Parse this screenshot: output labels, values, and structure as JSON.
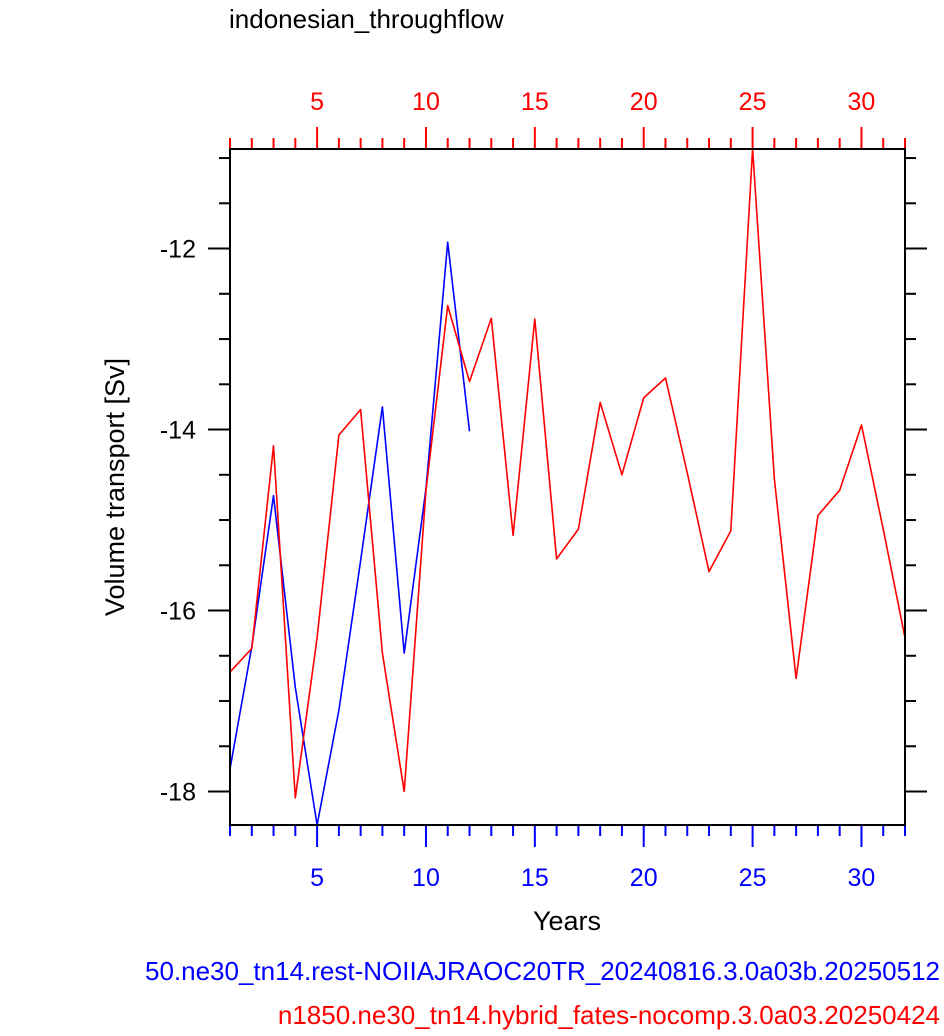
{
  "chart_data": {
    "type": "line",
    "title": "indonesian_throughflow",
    "xlabel": "Years",
    "ylabel": "Volume transport [Sv]",
    "x_range": [
      1,
      32
    ],
    "y_range": [
      -18.37,
      -10.9
    ],
    "x_ticks_major": [
      5,
      10,
      15,
      20,
      25,
      30
    ],
    "y_ticks_major": [
      -12,
      -14,
      -16,
      -18
    ],
    "grid": false,
    "series": [
      {
        "name": "50.ne30_tn14.rest-NOIIAJRAOC20TR_20240816.3.0a03b.20250512",
        "color": "#0000ff",
        "axis": "bottom",
        "x": [
          1,
          2,
          3,
          4,
          5,
          6,
          7,
          8,
          9,
          10,
          11,
          12
        ],
        "y": [
          -17.75,
          -16.4,
          -14.73,
          -16.85,
          -18.37,
          -17.1,
          -15.45,
          -13.75,
          -16.47,
          -14.65,
          -11.93,
          -14.02
        ]
      },
      {
        "name": "n1850.ne30_tn14.hybrid_fates-nocomp.3.0a03.20250424",
        "color": "#ff0000",
        "axis": "top",
        "x": [
          1,
          2,
          3,
          4,
          5,
          6,
          7,
          8,
          9,
          10,
          11,
          12,
          13,
          14,
          15,
          16,
          17,
          18,
          19,
          20,
          21,
          22,
          23,
          24,
          25,
          26,
          27,
          28,
          29,
          30,
          31,
          32
        ],
        "y": [
          -16.68,
          -16.42,
          -14.18,
          -18.07,
          -16.3,
          -14.06,
          -13.78,
          -16.47,
          -18.0,
          -14.67,
          -12.63,
          -13.47,
          -12.77,
          -15.17,
          -12.78,
          -15.43,
          -15.1,
          -13.7,
          -14.5,
          -13.65,
          -13.43,
          -14.48,
          -15.57,
          -15.12,
          -10.9,
          -14.55,
          -16.75,
          -14.95,
          -14.67,
          -13.95,
          -15.1,
          -16.3
        ]
      }
    ]
  }
}
